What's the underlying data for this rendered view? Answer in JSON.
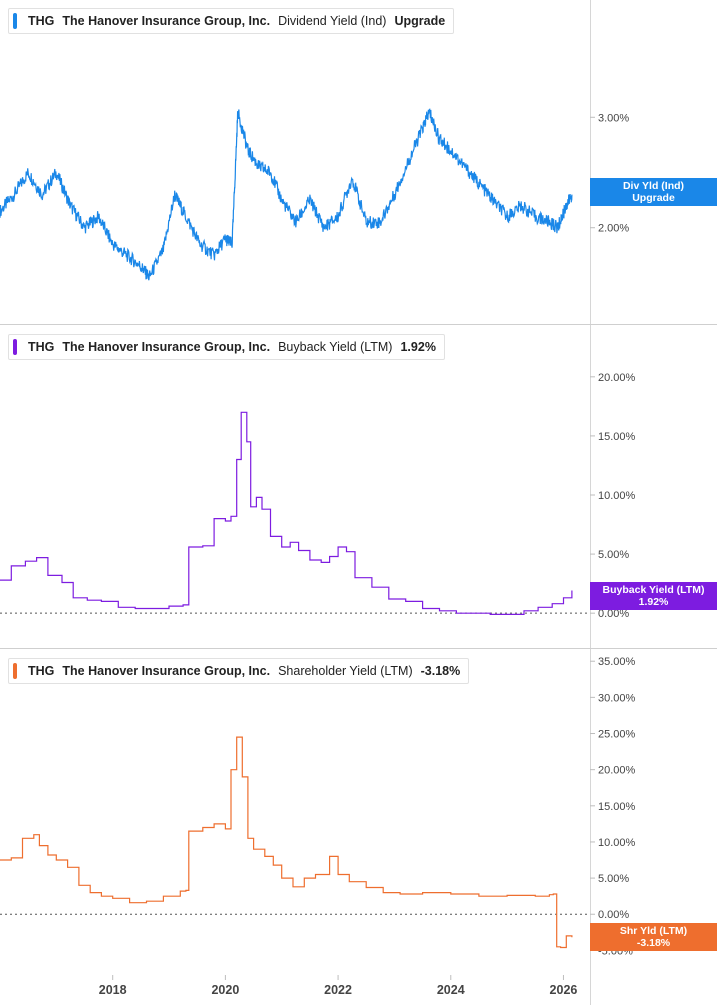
{
  "chart_data": [
    {
      "type": "line",
      "ticker": "THG",
      "company": "The Hanover Insurance Group, Inc.",
      "metric": "Dividend Yield (Ind)",
      "legend_value": "Upgrade",
      "tag_label": "Div Yld (Ind)",
      "tag_value": "Upgrade",
      "color": "#1a87e8",
      "y_ticks": [
        "3.00%",
        "2.00%"
      ],
      "y_tick_values": [
        3.0,
        2.0
      ],
      "ylim": [
        1.3,
        3.7
      ],
      "x": [
        2016.0,
        2016.25,
        2016.5,
        2016.75,
        2017.0,
        2017.25,
        2017.5,
        2017.75,
        2018.0,
        2018.25,
        2018.5,
        2018.65,
        2018.9,
        2019.1,
        2019.3,
        2019.55,
        2019.8,
        2020.0,
        2020.12,
        2020.22,
        2020.4,
        2020.6,
        2020.8,
        2021.0,
        2021.25,
        2021.5,
        2021.75,
        2022.0,
        2022.25,
        2022.5,
        2022.75,
        2023.0,
        2023.25,
        2023.5,
        2023.62,
        2023.8,
        2024.0,
        2024.25,
        2024.5,
        2024.75,
        2025.0,
        2025.25,
        2025.5,
        2025.75,
        2025.9,
        2026.05,
        2026.15
      ],
      "values": [
        2.15,
        2.3,
        2.5,
        2.3,
        2.5,
        2.2,
        2.0,
        2.1,
        1.85,
        1.75,
        1.65,
        1.55,
        1.8,
        2.3,
        2.1,
        1.85,
        1.75,
        1.9,
        1.85,
        3.05,
        2.7,
        2.55,
        2.5,
        2.25,
        2.05,
        2.25,
        2.0,
        2.1,
        2.45,
        2.05,
        2.05,
        2.3,
        2.6,
        2.9,
        3.05,
        2.8,
        2.7,
        2.55,
        2.4,
        2.25,
        2.1,
        2.2,
        2.1,
        2.05,
        2.0,
        2.2,
        2.3
      ]
    },
    {
      "type": "line",
      "ticker": "THG",
      "company": "The Hanover Insurance Group, Inc.",
      "metric": "Buyback Yield (LTM)",
      "legend_value": "1.92%",
      "tag_label": "Buyback Yield (LTM)",
      "tag_value": "1.92%",
      "color": "#7d1ce0",
      "y_ticks": [
        "20.00%",
        "15.00%",
        "10.00%",
        "5.00%",
        "0.00%"
      ],
      "y_tick_values": [
        20,
        15,
        10,
        5,
        0
      ],
      "ylim": [
        -1,
        21
      ],
      "x": [
        2016.0,
        2016.2,
        2016.45,
        2016.65,
        2016.85,
        2017.1,
        2017.3,
        2017.55,
        2017.8,
        2018.1,
        2018.4,
        2018.7,
        2019.0,
        2019.25,
        2019.35,
        2019.6,
        2019.8,
        2020.0,
        2020.1,
        2020.2,
        2020.28,
        2020.38,
        2020.45,
        2020.55,
        2020.65,
        2020.8,
        2021.0,
        2021.15,
        2021.3,
        2021.5,
        2021.7,
        2021.85,
        2022.0,
        2022.15,
        2022.3,
        2022.6,
        2022.9,
        2023.2,
        2023.5,
        2023.8,
        2024.1,
        2024.4,
        2024.7,
        2025.0,
        2025.3,
        2025.55,
        2025.8,
        2026.0,
        2026.15
      ],
      "values": [
        2.8,
        4.0,
        4.4,
        4.7,
        3.2,
        2.6,
        1.3,
        1.1,
        1.0,
        0.5,
        0.4,
        0.4,
        0.6,
        0.7,
        5.6,
        5.7,
        8.0,
        7.8,
        8.2,
        13.0,
        17.0,
        14.5,
        9.0,
        9.8,
        8.8,
        6.5,
        5.6,
        6.0,
        5.3,
        4.5,
        4.3,
        4.8,
        5.6,
        5.2,
        3.0,
        2.2,
        1.2,
        1.0,
        0.4,
        0.2,
        0.0,
        0.0,
        -0.1,
        -0.1,
        0.2,
        0.5,
        0.8,
        1.3,
        1.92
      ]
    },
    {
      "type": "line",
      "ticker": "THG",
      "company": "The Hanover Insurance Group, Inc.",
      "metric": "Shareholder Yield (LTM)",
      "legend_value": "-3.18%",
      "tag_label": "Shr Yld (LTM)",
      "tag_value": "-3.18%",
      "color": "#ee6e2e",
      "y_ticks": [
        "35.00%",
        "30.00%",
        "25.00%",
        "20.00%",
        "15.00%",
        "10.00%",
        "5.00%",
        "0.00%",
        "-5.00%"
      ],
      "y_tick_values": [
        35,
        30,
        25,
        20,
        15,
        10,
        5,
        0,
        -5
      ],
      "ylim": [
        -5.5,
        36
      ],
      "x": [
        2016.0,
        2016.2,
        2016.4,
        2016.6,
        2016.7,
        2016.85,
        2017.0,
        2017.2,
        2017.4,
        2017.6,
        2017.8,
        2018.0,
        2018.3,
        2018.6,
        2018.9,
        2019.2,
        2019.3,
        2019.35,
        2019.6,
        2019.8,
        2020.0,
        2020.1,
        2020.2,
        2020.3,
        2020.4,
        2020.5,
        2020.7,
        2020.85,
        2021.0,
        2021.2,
        2021.4,
        2021.6,
        2021.85,
        2022.0,
        2022.2,
        2022.5,
        2022.8,
        2023.1,
        2023.5,
        2024.0,
        2024.5,
        2025.0,
        2025.5,
        2025.75,
        2025.82,
        2025.88,
        2025.95,
        2026.05,
        2026.15
      ],
      "values": [
        7.5,
        7.8,
        10.5,
        11.0,
        9.5,
        8.2,
        7.5,
        6.5,
        4.0,
        3.0,
        2.5,
        2.2,
        1.6,
        1.8,
        2.5,
        3.2,
        3.3,
        11.5,
        12.0,
        12.5,
        11.8,
        20.0,
        24.5,
        19.0,
        10.5,
        9.0,
        8.0,
        6.8,
        5.0,
        3.8,
        5.0,
        5.5,
        8.0,
        5.5,
        4.5,
        3.7,
        3.0,
        2.8,
        3.0,
        2.8,
        2.5,
        2.6,
        2.5,
        2.7,
        2.8,
        -4.5,
        -4.6,
        -3.0,
        -3.18
      ]
    }
  ],
  "x_axis": {
    "ticks": [
      "2018",
      "2020",
      "2022",
      "2024",
      "2026"
    ],
    "tick_values": [
      2018,
      2020,
      2022,
      2024,
      2026
    ]
  }
}
